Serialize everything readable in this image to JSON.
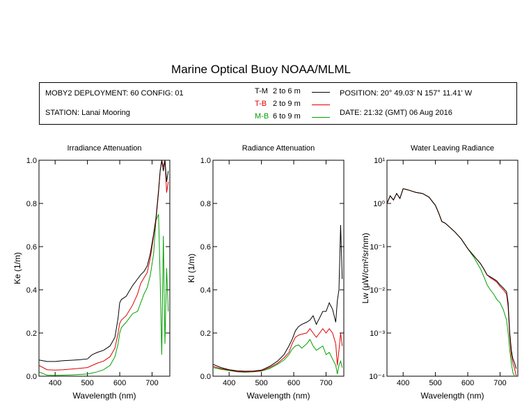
{
  "title": "Marine Optical Buoy NOAA/MLML",
  "info": {
    "deployment": "MOBY2 DEPLOYMENT: 60 CONFIG: 01",
    "station": "STATION: Lanai Mooring",
    "position": "POSITION: 20° 49.03' N   157° 11.41' W",
    "date": "DATE: 21:32 (GMT) 06 Aug 2016"
  },
  "legend": [
    {
      "tag": "T-M",
      "range": "2 to 6  m",
      "color": "#000000"
    },
    {
      "tag": "T-B",
      "range": "2 to 9  m",
      "color": "#e00000"
    },
    {
      "tag": "M-B",
      "range": "6 to 9  m",
      "color": "#00a000"
    }
  ],
  "chart_data": [
    {
      "type": "line",
      "title": "Irradiance Attenuation",
      "xlabel": "Wavelength (nm)",
      "ylabel": "Ke  (1/m)",
      "xlim": [
        350,
        755
      ],
      "ylim": [
        0,
        1.0
      ],
      "xticks": [
        "400",
        "500",
        "600",
        "700"
      ],
      "yticks": [
        "0.0",
        "0.2",
        "0.4",
        "0.6",
        "0.8",
        "1.0"
      ],
      "x": [
        350,
        375,
        400,
        425,
        450,
        475,
        500,
        515,
        530,
        550,
        570,
        585,
        595,
        600,
        605,
        620,
        640,
        655,
        665,
        675,
        685,
        695,
        705,
        712,
        720,
        725,
        730,
        735,
        740,
        745,
        750
      ],
      "series": [
        {
          "name": "T-M",
          "color": "#000000",
          "values": [
            0.075,
            0.068,
            0.068,
            0.072,
            0.074,
            0.076,
            0.08,
            0.1,
            0.11,
            0.12,
            0.14,
            0.18,
            0.27,
            0.34,
            0.355,
            0.37,
            0.42,
            0.45,
            0.47,
            0.485,
            0.51,
            0.57,
            0.66,
            0.73,
            0.86,
            0.95,
            1.0,
            0.95,
            1.0,
            0.9,
            0.95
          ]
        },
        {
          "name": "T-B",
          "color": "#e00000",
          "values": [
            0.05,
            0.03,
            0.028,
            0.03,
            0.033,
            0.036,
            0.04,
            0.05,
            0.06,
            0.07,
            0.09,
            0.13,
            0.2,
            0.245,
            0.26,
            0.28,
            0.33,
            0.38,
            0.43,
            0.455,
            0.48,
            0.55,
            0.65,
            0.72,
            0.85,
            0.95,
            1.0,
            0.97,
            1.0,
            0.85,
            0.9
          ]
        },
        {
          "name": "M-B",
          "color": "#00a000",
          "values": [
            0.02,
            0.005,
            0.004,
            0.005,
            0.006,
            0.008,
            0.01,
            0.015,
            0.02,
            0.03,
            0.05,
            0.09,
            0.15,
            0.2,
            0.225,
            0.25,
            0.29,
            0.3,
            0.34,
            0.38,
            0.41,
            0.47,
            0.57,
            0.72,
            0.75,
            0.45,
            0.1,
            0.65,
            0.15,
            0.5,
            0.3
          ]
        }
      ]
    },
    {
      "type": "line",
      "title": "Radiance Attenuation",
      "xlabel": "Wavelength (nm)",
      "ylabel": "Kl  (1/m)",
      "xlim": [
        350,
        755
      ],
      "ylim": [
        0,
        1.0
      ],
      "xticks": [
        "400",
        "500",
        "600",
        "700"
      ],
      "yticks": [
        "0.0",
        "0.2",
        "0.4",
        "0.6",
        "0.8",
        "1.0"
      ],
      "x": [
        350,
        375,
        400,
        425,
        450,
        475,
        500,
        525,
        550,
        570,
        585,
        595,
        605,
        615,
        625,
        640,
        650,
        660,
        670,
        680,
        690,
        700,
        710,
        720,
        730,
        735,
        740,
        745,
        750
      ],
      "series": [
        {
          "name": "T-M",
          "color": "#000000",
          "values": [
            0.055,
            0.04,
            0.03,
            0.025,
            0.023,
            0.024,
            0.028,
            0.045,
            0.07,
            0.1,
            0.14,
            0.17,
            0.21,
            0.23,
            0.24,
            0.25,
            0.26,
            0.28,
            0.24,
            0.27,
            0.3,
            0.3,
            0.34,
            0.31,
            0.25,
            0.35,
            0.4,
            0.7,
            0.45
          ]
        },
        {
          "name": "T-B",
          "color": "#e00000",
          "values": [
            0.045,
            0.035,
            0.028,
            0.022,
            0.02,
            0.021,
            0.025,
            0.04,
            0.06,
            0.085,
            0.11,
            0.15,
            0.18,
            0.19,
            0.195,
            0.2,
            0.22,
            0.2,
            0.18,
            0.2,
            0.22,
            0.2,
            0.22,
            0.2,
            0.15,
            0.05,
            0.12,
            0.2,
            0.14
          ]
        },
        {
          "name": "M-B",
          "color": "#00a000",
          "values": [
            0.04,
            0.032,
            0.026,
            0.02,
            0.018,
            0.02,
            0.024,
            0.035,
            0.055,
            0.075,
            0.1,
            0.125,
            0.14,
            0.145,
            0.13,
            0.15,
            0.17,
            0.14,
            0.12,
            0.13,
            0.14,
            0.1,
            0.11,
            0.08,
            0.05,
            0.01,
            0.05,
            0.07,
            0.04
          ]
        }
      ]
    },
    {
      "type": "line",
      "title": "Water Leaving Radiance",
      "xlabel": "Wavelength (nm)",
      "ylabel": "Lw  (μW/cm²/sr/nm)",
      "yscale": "log",
      "xlim": [
        350,
        755
      ],
      "ylim": [
        0.0001,
        10
      ],
      "xticks": [
        "400",
        "500",
        "600",
        "700"
      ],
      "yticks": [
        "10⁻⁴",
        "10⁻³",
        "10⁻²",
        "10⁻¹",
        "10⁰",
        "10¹"
      ],
      "x": [
        350,
        360,
        370,
        380,
        390,
        400,
        410,
        420,
        440,
        460,
        480,
        500,
        510,
        520,
        530,
        540,
        560,
        580,
        600,
        620,
        640,
        650,
        660,
        670,
        680,
        690,
        700,
        710,
        720,
        725,
        730,
        735,
        740,
        745,
        750
      ],
      "series": [
        {
          "name": "T-M",
          "color": "#000000",
          "values": [
            1.0,
            1.5,
            1.2,
            1.7,
            1.3,
            2.2,
            2.1,
            2.0,
            1.8,
            1.7,
            1.4,
            0.9,
            0.6,
            0.38,
            0.35,
            0.3,
            0.22,
            0.15,
            0.09,
            0.06,
            0.04,
            0.03,
            0.022,
            0.02,
            0.018,
            0.016,
            0.013,
            0.011,
            0.009,
            0.005,
            0.001,
            0.0004,
            0.00025,
            0.0002,
            0.00015
          ]
        },
        {
          "name": "T-B",
          "color": "#e00000",
          "values": [
            1.0,
            1.5,
            1.2,
            1.7,
            1.3,
            2.2,
            2.1,
            2.0,
            1.8,
            1.7,
            1.4,
            0.9,
            0.6,
            0.38,
            0.35,
            0.3,
            0.22,
            0.15,
            0.09,
            0.06,
            0.04,
            0.03,
            0.022,
            0.019,
            0.017,
            0.015,
            0.012,
            0.01,
            0.008,
            0.004,
            0.0008,
            0.0003,
            0.0002,
            0.00015,
            0.0001
          ]
        },
        {
          "name": "M-B",
          "color": "#00a000",
          "values": [
            1.0,
            1.5,
            1.2,
            1.7,
            1.3,
            2.2,
            2.1,
            2.0,
            1.8,
            1.7,
            1.4,
            0.9,
            0.6,
            0.38,
            0.35,
            0.3,
            0.22,
            0.15,
            0.09,
            0.055,
            0.03,
            0.02,
            0.013,
            0.01,
            0.008,
            0.006,
            0.005,
            0.0035,
            0.002,
            0.001,
            0.0004,
            0.0002,
            0.00012,
            0.0001,
            0.0001
          ]
        }
      ]
    }
  ]
}
